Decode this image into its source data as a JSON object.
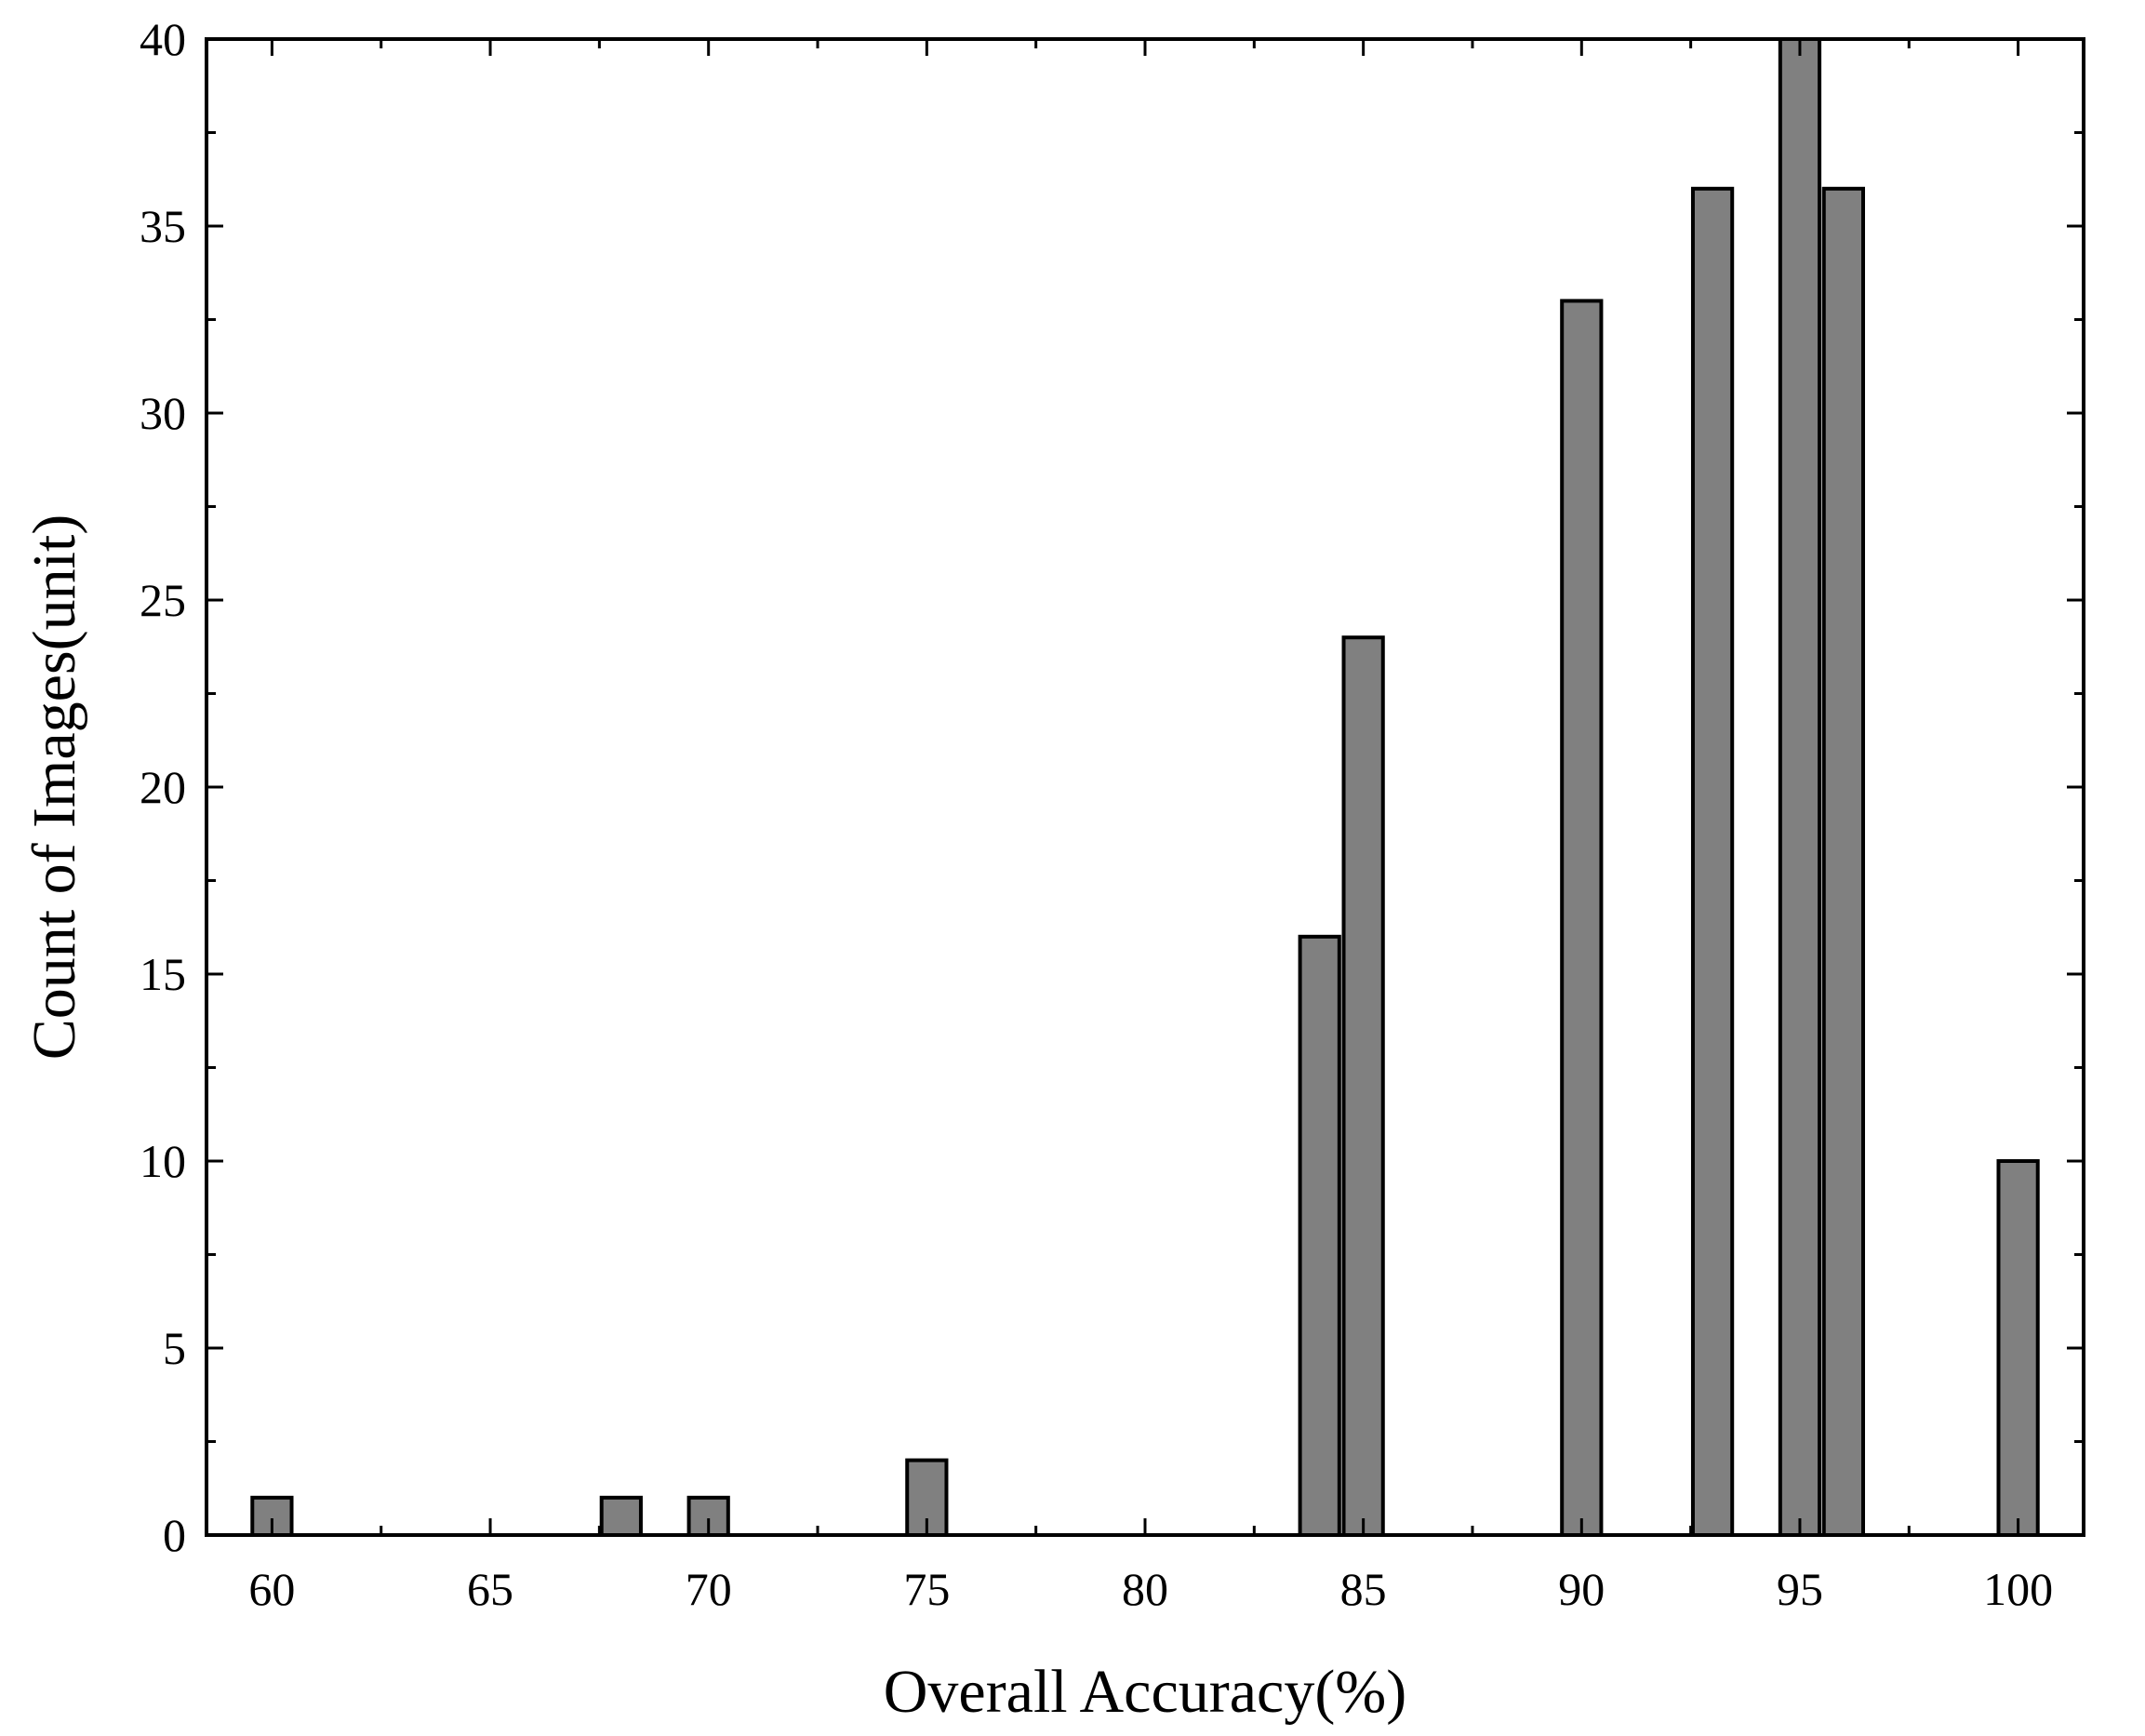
{
  "chart_data": {
    "type": "bar",
    "xlabel": "Overall Accuracy(%)",
    "ylabel": "Count of Images(unit)",
    "xlim": [
      58.5,
      101.5
    ],
    "ylim": [
      0,
      40
    ],
    "xticks": [
      60,
      65,
      70,
      75,
      80,
      85,
      90,
      95,
      100
    ],
    "yticks": [
      0,
      5,
      10,
      15,
      20,
      25,
      30,
      35,
      40
    ],
    "bar_width": 0.9,
    "bar_color": "#808080",
    "grid": false,
    "bars": [
      {
        "x": 60,
        "value": 1
      },
      {
        "x": 68,
        "value": 1
      },
      {
        "x": 70,
        "value": 1
      },
      {
        "x": 75,
        "value": 2
      },
      {
        "x": 84,
        "value": 16
      },
      {
        "x": 85,
        "value": 24
      },
      {
        "x": 90,
        "value": 33
      },
      {
        "x": 93,
        "value": 36
      },
      {
        "x": 95,
        "value": 40
      },
      {
        "x": 96,
        "value": 36
      },
      {
        "x": 100,
        "value": 10
      }
    ]
  }
}
